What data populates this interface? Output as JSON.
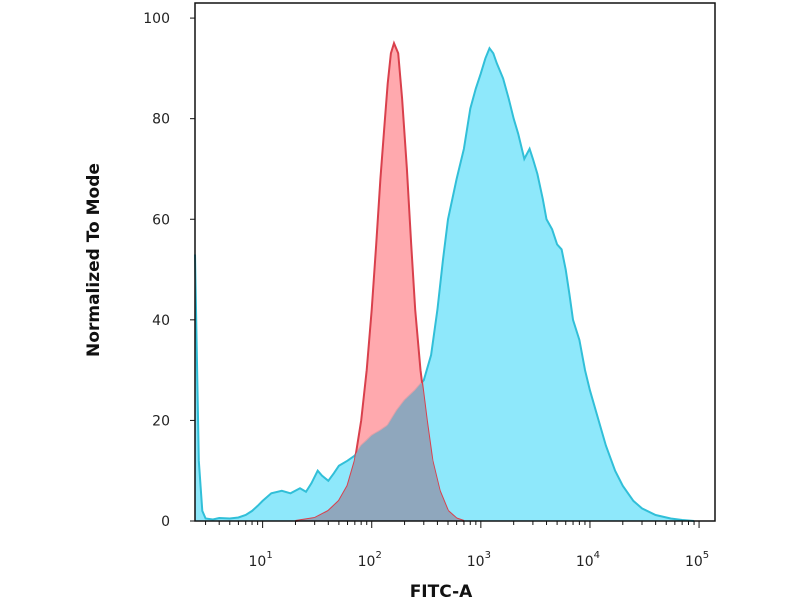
{
  "chart_data": {
    "type": "area",
    "title": "",
    "xlabel": "FITC-A",
    "ylabel": "Normalized To Mode",
    "x_scale": "log",
    "xlim": [
      2.4,
      140000
    ],
    "ylim": [
      0,
      103
    ],
    "grid": false,
    "legend": "none",
    "y_ticks": [
      0,
      20,
      40,
      60,
      80,
      100
    ],
    "y_tick_labels": [
      "0",
      "20",
      "40",
      "60",
      "80",
      "100"
    ],
    "x_ticks": [
      10,
      100,
      1000,
      10000,
      100000
    ],
    "x_tick_labels": [
      {
        "base": "10",
        "exp": "1"
      },
      {
        "base": "10",
        "exp": "2"
      },
      {
        "base": "10",
        "exp": "3"
      },
      {
        "base": "10",
        "exp": "4"
      },
      {
        "base": "10",
        "exp": "5"
      }
    ],
    "series": [
      {
        "color_fill": "#ff9aa0",
        "color_line": "#d9404c",
        "points": [
          [
            20,
            0
          ],
          [
            30,
            0.6
          ],
          [
            40,
            2
          ],
          [
            50,
            4
          ],
          [
            60,
            7
          ],
          [
            70,
            12
          ],
          [
            80,
            20
          ],
          [
            90,
            30
          ],
          [
            100,
            42
          ],
          [
            110,
            55
          ],
          [
            120,
            68
          ],
          [
            130,
            78
          ],
          [
            140,
            87
          ],
          [
            150,
            93
          ],
          [
            160,
            95
          ],
          [
            175,
            93
          ],
          [
            190,
            84
          ],
          [
            210,
            70
          ],
          [
            230,
            55
          ],
          [
            250,
            42
          ],
          [
            280,
            30
          ],
          [
            320,
            20
          ],
          [
            360,
            12
          ],
          [
            420,
            6
          ],
          [
            500,
            2
          ],
          [
            600,
            0.5
          ],
          [
            700,
            0
          ]
        ]
      },
      {
        "color_fill": "#8ee8fb",
        "color_line": "#31bfd8",
        "points": [
          [
            2.4,
            53
          ],
          [
            2.6,
            12
          ],
          [
            2.8,
            2
          ],
          [
            3,
            0.5
          ],
          [
            3.5,
            0.3
          ],
          [
            4,
            0.6
          ],
          [
            5,
            0.5
          ],
          [
            6,
            0.7
          ],
          [
            7,
            1.2
          ],
          [
            8,
            2
          ],
          [
            9,
            3
          ],
          [
            10,
            4
          ],
          [
            12,
            5.5
          ],
          [
            15,
            6
          ],
          [
            18,
            5.5
          ],
          [
            22,
            6.5
          ],
          [
            25,
            5.8
          ],
          [
            28,
            7.5
          ],
          [
            32,
            10
          ],
          [
            35,
            9
          ],
          [
            40,
            8
          ],
          [
            45,
            9.5
          ],
          [
            50,
            11
          ],
          [
            60,
            12
          ],
          [
            70,
            13
          ],
          [
            80,
            15
          ],
          [
            90,
            16
          ],
          [
            100,
            17
          ],
          [
            120,
            18
          ],
          [
            140,
            19
          ],
          [
            170,
            22
          ],
          [
            200,
            24
          ],
          [
            250,
            26
          ],
          [
            300,
            28
          ],
          [
            350,
            33
          ],
          [
            400,
            42
          ],
          [
            450,
            52
          ],
          [
            500,
            60
          ],
          [
            600,
            68
          ],
          [
            700,
            74
          ],
          [
            800,
            82
          ],
          [
            900,
            86
          ],
          [
            1000,
            89
          ],
          [
            1100,
            92
          ],
          [
            1200,
            94
          ],
          [
            1300,
            93
          ],
          [
            1400,
            91
          ],
          [
            1600,
            88
          ],
          [
            1800,
            84
          ],
          [
            2000,
            80
          ],
          [
            2200,
            77
          ],
          [
            2500,
            72
          ],
          [
            2800,
            74
          ],
          [
            3000,
            72
          ],
          [
            3300,
            69
          ],
          [
            3700,
            64
          ],
          [
            4000,
            60
          ],
          [
            4500,
            58
          ],
          [
            5000,
            55
          ],
          [
            5500,
            54
          ],
          [
            6000,
            50
          ],
          [
            6500,
            45
          ],
          [
            7000,
            40
          ],
          [
            8000,
            36
          ],
          [
            9000,
            30
          ],
          [
            10000,
            26
          ],
          [
            12000,
            20
          ],
          [
            14000,
            15
          ],
          [
            17000,
            10
          ],
          [
            20000,
            7
          ],
          [
            25000,
            4
          ],
          [
            30000,
            2.5
          ],
          [
            40000,
            1.2
          ],
          [
            55000,
            0.5
          ],
          [
            70000,
            0.2
          ],
          [
            90000,
            0
          ]
        ]
      }
    ]
  }
}
